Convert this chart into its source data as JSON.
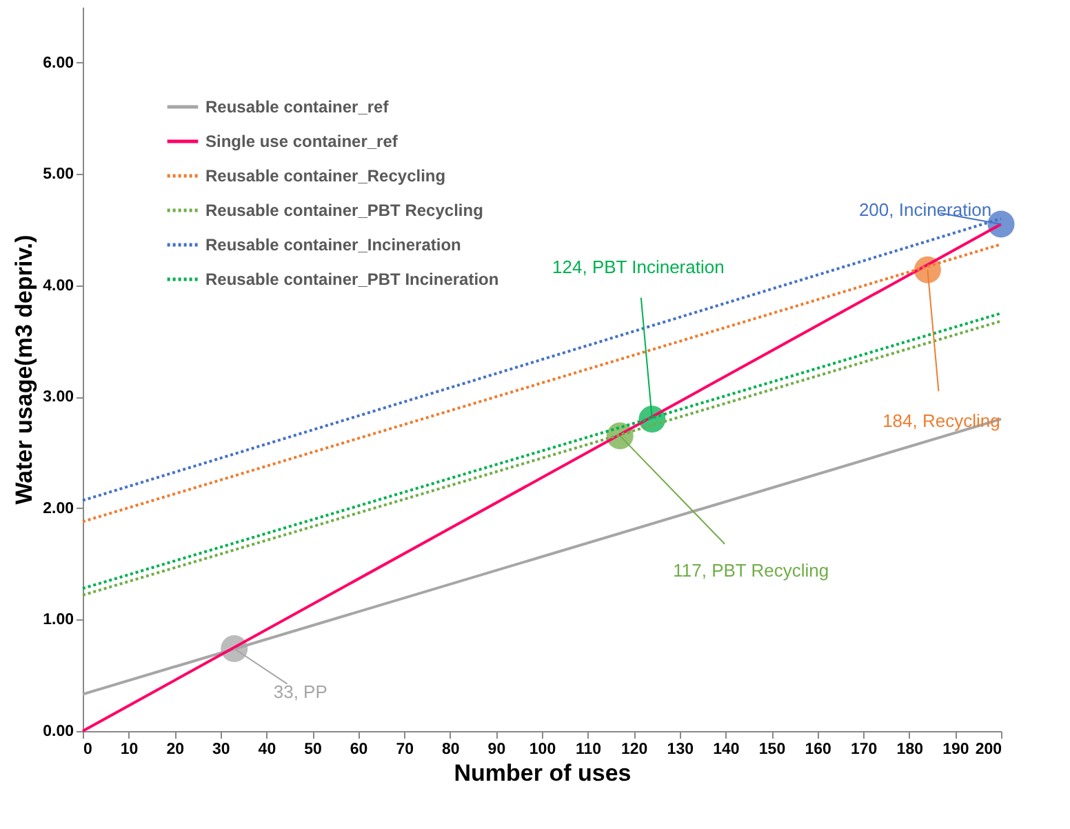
{
  "chart_data": {
    "type": "line",
    "xlabel": "Number of uses",
    "ylabel": "Water usage(m3 depriv.)",
    "xlim": [
      0,
      200
    ],
    "xticks": [
      0,
      10,
      20,
      30,
      40,
      50,
      60,
      70,
      80,
      90,
      100,
      110,
      120,
      130,
      140,
      150,
      160,
      170,
      180,
      190,
      200
    ],
    "ylim": [
      0,
      6.5
    ],
    "yticks": [
      {
        "value": 0,
        "label": "0.00"
      },
      {
        "value": 1,
        "label": "1.00"
      },
      {
        "value": 2,
        "label": "2.00"
      },
      {
        "value": 3,
        "label": "3.00"
      },
      {
        "value": 4,
        "label": "4.00"
      },
      {
        "value": 5,
        "label": "5.00"
      },
      {
        "value": 6,
        "label": "6.00"
      }
    ],
    "legend": "top left",
    "grid": false,
    "series": [
      {
        "name": "Reusable container_ref",
        "color": "#a6a6a6",
        "line_style": "solid",
        "x": [
          0,
          200
        ],
        "values": [
          0.33,
          2.8
        ]
      },
      {
        "name": "Single use container_ref",
        "color": "#ff0066",
        "line_style": "solid",
        "x": [
          0,
          200
        ],
        "values": [
          0,
          4.55
        ]
      },
      {
        "name": "Reusable container_Recycling",
        "color": "#ed7d31",
        "line_style": "dotted",
        "x": [
          0,
          200
        ],
        "values": [
          1.88,
          4.37
        ]
      },
      {
        "name": "Reusable container_PBT Recycling",
        "color": "#70ad47",
        "line_style": "dotted",
        "x": [
          0,
          200
        ],
        "values": [
          1.22,
          3.68
        ]
      },
      {
        "name": "Reusable container_Incineration",
        "color": "#4472c4",
        "line_style": "dotted",
        "x": [
          0,
          200
        ],
        "values": [
          2.07,
          4.6
        ]
      },
      {
        "name": "Reusable container_PBT Incineration",
        "color": "#00b050",
        "line_style": "dotted",
        "x": [
          0,
          200
        ],
        "values": [
          1.28,
          3.75
        ]
      },
      {
        "type": "scatter",
        "marker": "circle",
        "x": [
          33,
          117,
          124,
          184,
          200
        ],
        "values": [
          0.74,
          2.65,
          2.8,
          4.14,
          4.55
        ],
        "colors": [
          "#a6a6a6",
          "#70ad47",
          "#00b050",
          "#ed7d31",
          "#4472c4"
        ]
      }
    ],
    "annotations": [
      {
        "text": "33, PP",
        "x": 33,
        "y": 0.74
      },
      {
        "text": "117, PBT Recycling",
        "x": 117,
        "y": 2.65
      },
      {
        "text": "124, PBT Incineration",
        "x": 124,
        "y": 2.8
      },
      {
        "text": "184, Recycling",
        "x": 184,
        "y": 4.14
      },
      {
        "text": "200, Incineration",
        "x": 200,
        "y": 4.55
      }
    ]
  }
}
